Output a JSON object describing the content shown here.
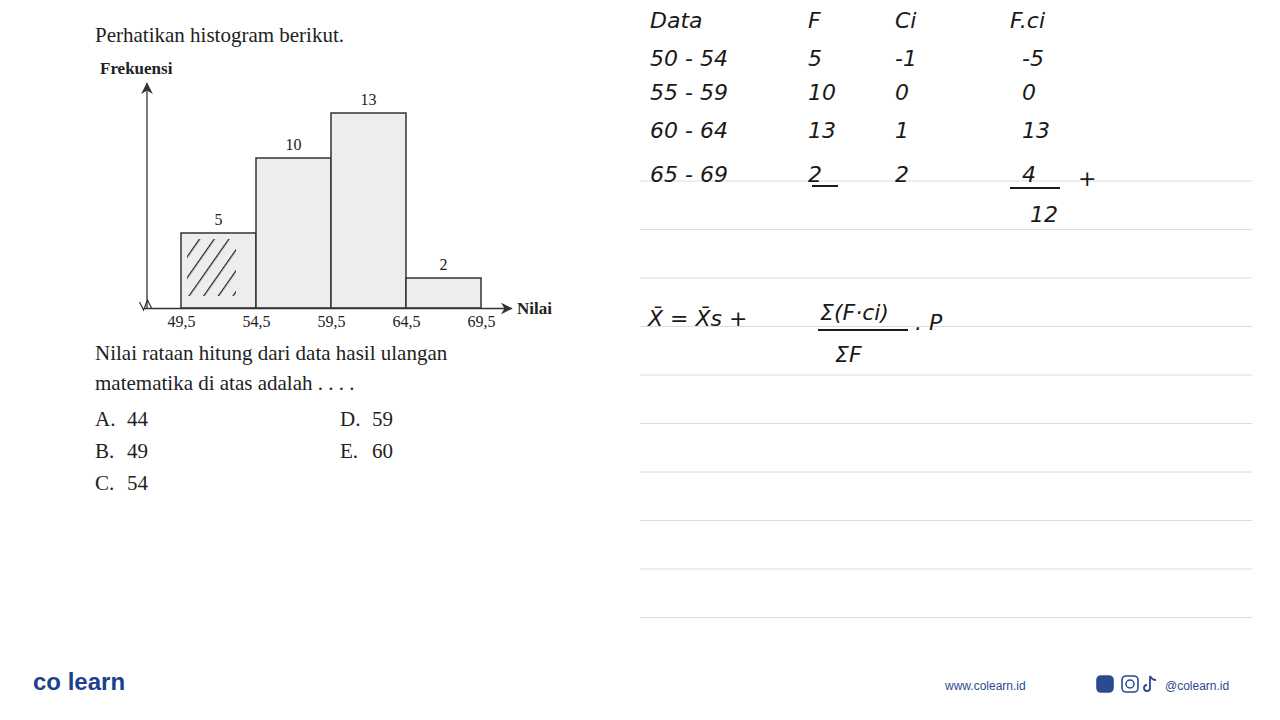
{
  "header": {
    "instruction": "Perhatikan histogram berikut."
  },
  "chart_data": {
    "type": "histogram",
    "x_label": "Nilai",
    "y_label": "Frekuensi",
    "bins": [
      49.5,
      54.5,
      59.5,
      64.5,
      69.5
    ],
    "values": [
      5,
      10,
      13,
      2
    ],
    "xlim": [
      47,
      71.5
    ],
    "xticks": [
      {
        "value": 49.5,
        "label": "49,5"
      },
      {
        "value": 54.5,
        "label": "54,5"
      },
      {
        "value": 59.5,
        "label": "59,5"
      },
      {
        "value": 64.5,
        "label": "64,5"
      },
      {
        "value": 69.5,
        "label": "69,5"
      }
    ],
    "ylim": [
      0,
      15
    ],
    "yticks": [],
    "tick_labels": "x",
    "data_labels": true,
    "color": "#ededed"
  },
  "question": {
    "lines": [
      "Nilai rataan hitung dari data hasil ulangan",
      "matematika di atas adalah . . . ."
    ],
    "options": [
      {
        "letter": "A.",
        "text": "44"
      },
      {
        "letter": "B.",
        "text": "49"
      },
      {
        "letter": "C.",
        "text": "54"
      },
      {
        "letter": "D.",
        "text": "59"
      },
      {
        "letter": "E.",
        "text": "60"
      }
    ]
  },
  "notes": {
    "headers": [
      "Data",
      "F",
      "Ci",
      "F.ci"
    ],
    "rows": [
      [
        "50 - 54",
        "5",
        "-1",
        "-5"
      ],
      [
        "55 - 59",
        "10",
        "0",
        "0"
      ],
      [
        "60 - 64",
        "13",
        "1",
        "13"
      ],
      [
        "65 - 69",
        "2",
        "2",
        "4"
      ]
    ],
    "total": "12",
    "plus": "+",
    "formula": {
      "left": "X̄ = X̄s +",
      "numerator": "Σ(F·ci)",
      "denominator": "ΣF",
      "right": ". P"
    }
  },
  "footer": {
    "logo": "co learn",
    "website": "www.colearn.id",
    "social": "@colearn.id"
  }
}
